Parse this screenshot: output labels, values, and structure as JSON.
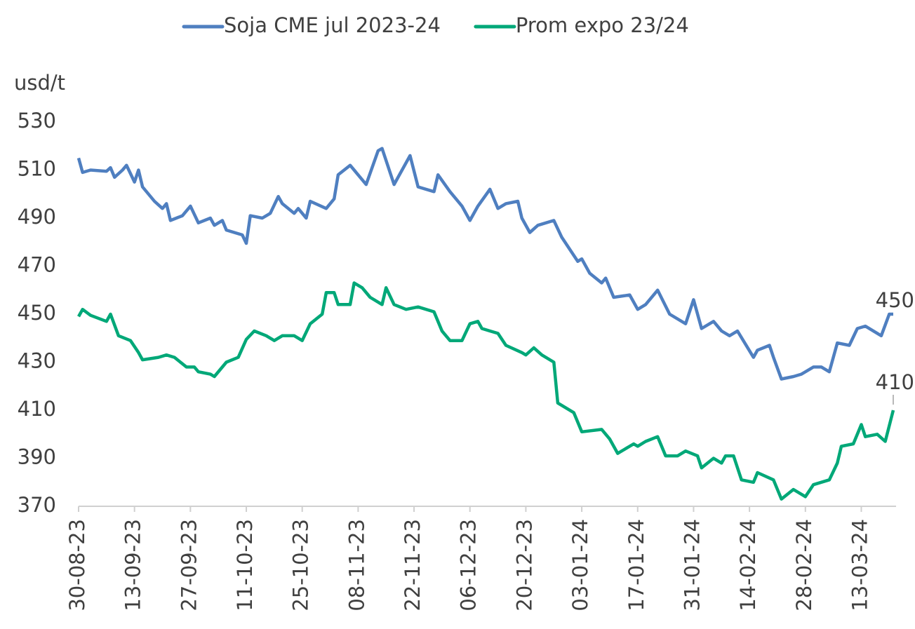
{
  "chart_data": {
    "type": "line",
    "ylabel": "usd/t",
    "ylim": [
      370,
      530
    ],
    "yticks": [
      370,
      390,
      410,
      430,
      450,
      470,
      490,
      510,
      530
    ],
    "xlim": [
      "30-08-23",
      "21-03-24"
    ],
    "xticks": [
      "30-08-23",
      "13-09-23",
      "27-09-23",
      "11-10-23",
      "25-10-23",
      "08-11-23",
      "22-11-23",
      "06-12-23",
      "20-12-23",
      "03-01-24",
      "17-01-24",
      "31-01-24",
      "14-02-24",
      "28-02-24",
      "13-03-24"
    ],
    "legend": "top",
    "series": [
      {
        "name": "Soja CME jul 2023-24",
        "color": "#4f7fc0",
        "x": [
          "30-08-23",
          "31-08-23",
          "02-09-23",
          "06-09-23",
          "07-09-23",
          "08-09-23",
          "10-09-23",
          "11-09-23",
          "13-09-23",
          "14-09-23",
          "15-09-23",
          "18-09-23",
          "20-09-23",
          "21-09-23",
          "22-09-23",
          "25-09-23",
          "27-09-23",
          "29-09-23",
          "02-10-23",
          "03-10-23",
          "05-10-23",
          "06-10-23",
          "10-10-23",
          "11-10-23",
          "12-10-23",
          "15-10-23",
          "17-10-23",
          "19-10-23",
          "20-10-23",
          "23-10-23",
          "24-10-23",
          "26-10-23",
          "27-10-23",
          "31-10-23",
          "02-11-23",
          "03-11-23",
          "06-11-23",
          "07-11-23",
          "10-11-23",
          "13-11-23",
          "14-11-23",
          "17-11-23",
          "21-11-23",
          "23-11-23",
          "27-11-23",
          "28-11-23",
          "01-12-23",
          "04-12-23",
          "06-12-23",
          "08-12-23",
          "11-12-23",
          "13-12-23",
          "15-12-23",
          "18-12-23",
          "19-12-23",
          "21-12-23",
          "23-12-23",
          "27-12-23",
          "29-12-23",
          "02-01-24",
          "03-01-24",
          "05-01-24",
          "08-01-24",
          "09-01-24",
          "11-01-24",
          "15-01-24",
          "17-01-24",
          "19-01-24",
          "22-01-24",
          "25-01-24",
          "29-01-24",
          "31-01-24",
          "02-02-24",
          "05-02-24",
          "07-02-24",
          "09-02-24",
          "11-02-24",
          "15-02-24",
          "16-02-24",
          "19-02-24",
          "20-02-24",
          "22-02-24",
          "25-02-24",
          "27-02-24",
          "01-03-24",
          "03-03-24",
          "05-03-24",
          "07-03-24",
          "10-03-24",
          "12-03-24",
          "14-03-24",
          "18-03-24",
          "20-03-24",
          "21-03-24"
        ],
        "values": [
          515,
          509,
          510,
          509.5,
          511,
          507,
          510,
          512,
          505,
          510,
          503,
          497,
          494,
          496,
          489,
          491,
          495,
          488,
          490,
          487,
          489,
          485,
          483,
          479.5,
          491,
          490,
          492,
          499,
          496,
          492,
          494,
          490,
          497,
          494,
          498,
          508,
          512,
          510,
          504,
          518,
          519,
          504,
          516,
          503,
          501,
          508,
          501,
          495,
          489,
          495,
          502,
          494,
          496,
          497,
          490,
          484,
          487,
          489,
          482,
          472,
          473,
          467,
          463,
          465,
          457,
          458,
          452,
          454,
          460,
          450,
          446,
          456,
          444,
          447,
          443,
          441,
          443,
          432,
          435,
          437,
          432,
          423,
          424,
          425,
          428,
          428,
          426,
          438,
          437,
          444,
          445,
          441,
          450,
          450
        ]
      },
      {
        "name": "Prom expo 23/24",
        "color": "#00a878",
        "x": [
          "30-08-23",
          "31-08-23",
          "02-09-23",
          "06-09-23",
          "07-09-23",
          "09-09-23",
          "12-09-23",
          "14-09-23",
          "15-09-23",
          "19-09-23",
          "21-09-23",
          "23-09-23",
          "26-09-23",
          "28-09-23",
          "29-09-23",
          "02-10-23",
          "03-10-23",
          "06-10-23",
          "09-10-23",
          "11-10-23",
          "13-10-23",
          "16-10-23",
          "18-10-23",
          "20-10-23",
          "23-10-23",
          "25-10-23",
          "27-10-23",
          "30-10-23",
          "31-10-23",
          "02-11-23",
          "03-11-23",
          "06-11-23",
          "07-11-23",
          "09-11-23",
          "11-11-23",
          "14-11-23",
          "15-11-23",
          "17-11-23",
          "20-11-23",
          "23-11-23",
          "27-11-23",
          "29-11-23",
          "01-12-23",
          "04-12-23",
          "06-12-23",
          "08-12-23",
          "09-12-23",
          "11-12-23",
          "13-12-23",
          "15-12-23",
          "19-12-23",
          "20-12-23",
          "22-12-23",
          "24-12-23",
          "27-12-23",
          "28-12-23",
          "01-01-24",
          "03-01-24",
          "08-01-24",
          "10-01-24",
          "12-01-24",
          "16-01-24",
          "17-01-24",
          "19-01-24",
          "22-01-24",
          "24-01-24",
          "27-01-24",
          "29-01-24",
          "01-02-24",
          "02-02-24",
          "05-02-24",
          "07-02-24",
          "08-02-24",
          "10-02-24",
          "12-02-24",
          "15-02-24",
          "16-02-24",
          "20-02-24",
          "22-02-24",
          "25-02-24",
          "28-02-24",
          "01-03-24",
          "05-03-24",
          "07-03-24",
          "08-03-24",
          "11-03-24",
          "13-03-24",
          "14-03-24",
          "17-03-24",
          "19-03-24",
          "21-03-24"
        ],
        "values": [
          449,
          452,
          449.5,
          447,
          450,
          441,
          439,
          434,
          431,
          432,
          433,
          432,
          428,
          428,
          426,
          425,
          424,
          430,
          432,
          439.5,
          443,
          441,
          439,
          441,
          441,
          439,
          446,
          450,
          459,
          459,
          454,
          454,
          463,
          461,
          457,
          454,
          461,
          454,
          452,
          453,
          451,
          443,
          439,
          439,
          446,
          447,
          444,
          443,
          442,
          437,
          434,
          433,
          436,
          433,
          430,
          413,
          409,
          401,
          402,
          398,
          392,
          396,
          395,
          397,
          399,
          391,
          391,
          393,
          391,
          386,
          390,
          388,
          391,
          391,
          381,
          380,
          384,
          381,
          373,
          377,
          374,
          379,
          381,
          388,
          395,
          396,
          404,
          399,
          400,
          397,
          410
        ]
      }
    ]
  }
}
